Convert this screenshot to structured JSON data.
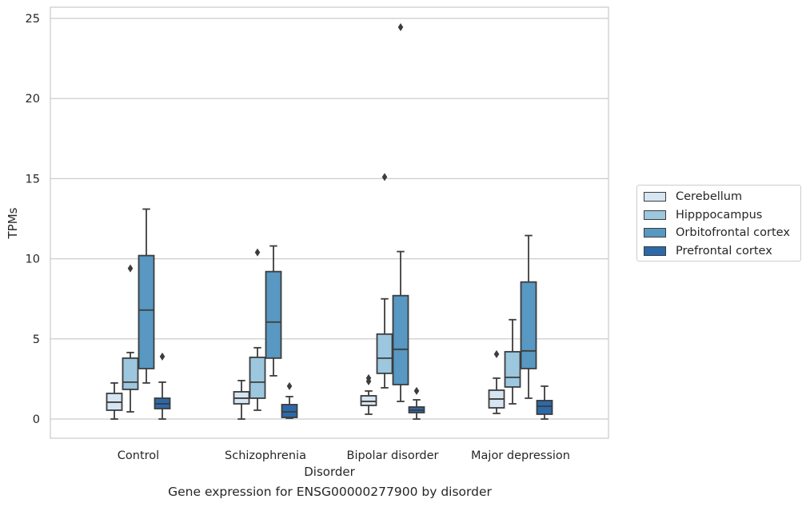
{
  "caption": "Gene expression for ENSG00000277900 by disorder",
  "chart_data": {
    "type": "box",
    "xlabel": "Disorder",
    "ylabel": "TPMs",
    "ylim": [
      -1.2,
      25.7
    ],
    "yticks": [
      0,
      5,
      10,
      15,
      20,
      25
    ],
    "grid": true,
    "legend_position": "right",
    "categories": [
      "Control",
      "Schizophrenia",
      "Bipolar disorder",
      "Major depression"
    ],
    "series": [
      {
        "name": "Cerebellum",
        "color": "#d6e5f2",
        "boxes": [
          {
            "whislo": 0.0,
            "q1": 0.55,
            "med": 1.05,
            "q3": 1.6,
            "whishi": 2.25,
            "fliers": []
          },
          {
            "whislo": 0.0,
            "q1": 0.95,
            "med": 1.3,
            "q3": 1.7,
            "whishi": 2.4,
            "fliers": []
          },
          {
            "whislo": 0.3,
            "q1": 0.85,
            "med": 1.1,
            "q3": 1.45,
            "whishi": 1.75,
            "fliers": [
              2.35,
              2.55
            ]
          },
          {
            "whislo": 0.35,
            "q1": 0.7,
            "med": 1.25,
            "q3": 1.8,
            "whishi": 2.55,
            "fliers": [
              4.05
            ]
          }
        ]
      },
      {
        "name": "Hipppocampus",
        "color": "#9cc7df",
        "boxes": [
          {
            "whislo": 0.45,
            "q1": 1.85,
            "med": 2.3,
            "q3": 3.8,
            "whishi": 4.15,
            "fliers": [
              9.4
            ]
          },
          {
            "whislo": 0.55,
            "q1": 1.3,
            "med": 2.3,
            "q3": 3.85,
            "whishi": 4.45,
            "fliers": [
              10.4
            ]
          },
          {
            "whislo": 1.95,
            "q1": 2.85,
            "med": 3.8,
            "q3": 5.3,
            "whishi": 7.5,
            "fliers": [
              15.1
            ]
          },
          {
            "whislo": 0.95,
            "q1": 2.0,
            "med": 2.6,
            "q3": 4.2,
            "whishi": 6.2,
            "fliers": []
          }
        ]
      },
      {
        "name": "Orbitofrontal cortex",
        "color": "#5898c2",
        "boxes": [
          {
            "whislo": 2.25,
            "q1": 3.15,
            "med": 6.8,
            "q3": 10.2,
            "whishi": 13.1,
            "fliers": []
          },
          {
            "whislo": 2.7,
            "q1": 3.8,
            "med": 6.05,
            "q3": 9.2,
            "whishi": 10.8,
            "fliers": []
          },
          {
            "whislo": 1.1,
            "q1": 2.15,
            "med": 4.35,
            "q3": 7.7,
            "whishi": 10.45,
            "fliers": [
              24.45
            ]
          },
          {
            "whislo": 1.3,
            "q1": 3.15,
            "med": 4.25,
            "q3": 8.55,
            "whishi": 11.45,
            "fliers": []
          }
        ]
      },
      {
        "name": "Prefrontal cortex",
        "color": "#2c69a9",
        "boxes": [
          {
            "whislo": 0.0,
            "q1": 0.65,
            "med": 0.95,
            "q3": 1.3,
            "whishi": 2.3,
            "fliers": [
              3.9
            ]
          },
          {
            "whislo": 0.05,
            "q1": 0.1,
            "med": 0.45,
            "q3": 0.9,
            "whishi": 1.4,
            "fliers": [
              2.05
            ]
          },
          {
            "whislo": 0.0,
            "q1": 0.4,
            "med": 0.55,
            "q3": 0.75,
            "whishi": 1.2,
            "fliers": [
              1.75
            ]
          },
          {
            "whislo": 0.0,
            "q1": 0.3,
            "med": 0.8,
            "q3": 1.15,
            "whishi": 2.05,
            "fliers": []
          }
        ]
      }
    ]
  }
}
